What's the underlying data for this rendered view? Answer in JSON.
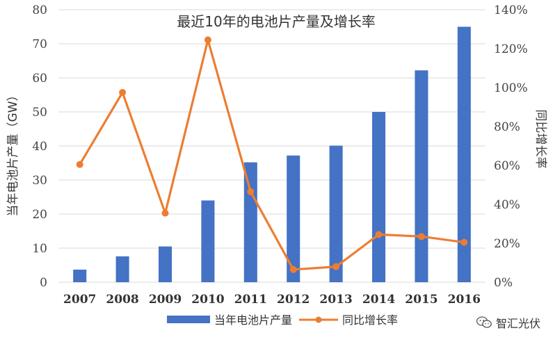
{
  "chart_data": {
    "type": "bar",
    "title": "最近10年的电池片产量及增长率",
    "categories": [
      "2007",
      "2008",
      "2009",
      "2010",
      "2011",
      "2012",
      "2013",
      "2014",
      "2015",
      "2016"
    ],
    "ylabel": "当年电池片产量（GW）",
    "y2label": "同比增长率",
    "ylim": [
      0,
      80
    ],
    "yticks": [
      0,
      10,
      20,
      30,
      40,
      50,
      60,
      70,
      80
    ],
    "y2lim": [
      0,
      140
    ],
    "y2ticks": [
      "0%",
      "20%",
      "40%",
      "60%",
      "80%",
      "100%",
      "120%",
      "140%"
    ],
    "grid": true,
    "legend_position": "bottom",
    "series": [
      {
        "name": "当年电池片产量",
        "type": "bar",
        "axis": "left",
        "color": "#4472C4",
        "values": [
          3.7,
          7.6,
          10.5,
          24.0,
          35.2,
          37.2,
          40.1,
          50.0,
          62.2,
          75.0
        ]
      },
      {
        "name": "同比增长率",
        "type": "line",
        "axis": "right",
        "color": "#ED7D31",
        "values": [
          60.5,
          97.5,
          35.5,
          124.5,
          46.5,
          6.5,
          8.0,
          24.5,
          23.5,
          20.5
        ]
      }
    ]
  },
  "watermark": {
    "text": "智汇光伏",
    "icon": "wechat-icon"
  }
}
